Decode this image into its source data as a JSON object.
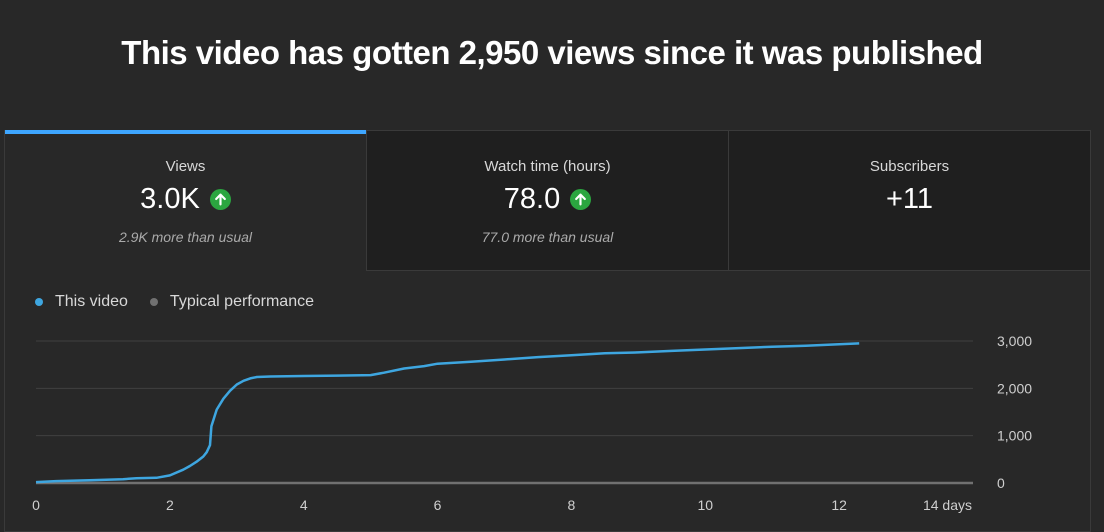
{
  "headline": "This video has gotten 2,950 views since it was published",
  "tabs": [
    {
      "label": "Views",
      "value": "3.0K",
      "trend": "up",
      "sub": "2.9K more than usual",
      "active": true
    },
    {
      "label": "Watch time (hours)",
      "value": "78.0",
      "trend": "up",
      "sub": "77.0 more than usual",
      "active": false
    },
    {
      "label": "Subscribers",
      "value": "+11",
      "trend": "",
      "sub": "",
      "active": false
    }
  ],
  "legend": [
    {
      "label": "This video",
      "color": "#3ea6e0"
    },
    {
      "label": "Typical performance",
      "color": "#717171"
    }
  ],
  "chart_data": {
    "type": "line",
    "xlim": [
      0,
      14
    ],
    "ylim": [
      0,
      3000
    ],
    "x_ticks": [
      0,
      2,
      4,
      6,
      8,
      10,
      12,
      14
    ],
    "x_tick_labels": [
      "0",
      "2",
      "4",
      "6",
      "8",
      "10",
      "12",
      "14 days"
    ],
    "y_ticks": [
      0,
      1000,
      2000,
      3000
    ],
    "y_tick_labels": [
      "0",
      "1,000",
      "2,000",
      "3,000"
    ],
    "grid": true,
    "legend_position": "top-left",
    "series": [
      {
        "name": "This video",
        "color": "#3ea6e0",
        "x": [
          0,
          0.3,
          0.8,
          1.3,
          1.5,
          1.8,
          2.0,
          2.2,
          2.3,
          2.4,
          2.5,
          2.55,
          2.6,
          2.62,
          2.7,
          2.8,
          2.9,
          3.0,
          3.1,
          3.2,
          3.3,
          3.5,
          4.0,
          4.5,
          5.0,
          5.2,
          5.5,
          5.8,
          6.0,
          6.5,
          7.0,
          7.5,
          8.0,
          8.5,
          9.0,
          9.5,
          10.0,
          10.5,
          11.0,
          11.5,
          12.0,
          12.3
        ],
        "y": [
          20,
          40,
          60,
          80,
          100,
          110,
          160,
          280,
          360,
          450,
          560,
          650,
          800,
          1200,
          1550,
          1780,
          1950,
          2080,
          2160,
          2210,
          2240,
          2250,
          2260,
          2270,
          2280,
          2330,
          2420,
          2470,
          2520,
          2560,
          2610,
          2660,
          2700,
          2740,
          2760,
          2790,
          2820,
          2850,
          2880,
          2900,
          2930,
          2950
        ]
      },
      {
        "name": "Typical performance",
        "color": "#717171",
        "x": [
          0,
          14
        ],
        "y": [
          0,
          0
        ]
      }
    ]
  }
}
